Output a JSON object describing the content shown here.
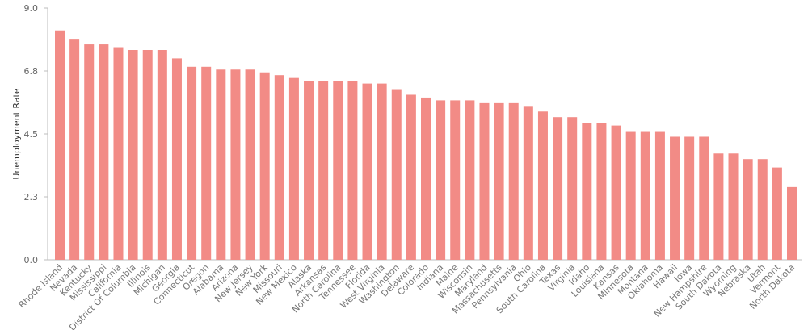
{
  "chart_data": {
    "type": "bar",
    "ylabel": "Unemployment Rate",
    "ylim": [
      0,
      9
    ],
    "yticks": [
      {
        "value": 0,
        "label": "0.0"
      },
      {
        "value": 2.25,
        "label": "2.3"
      },
      {
        "value": 4.5,
        "label": "4.5"
      },
      {
        "value": 6.75,
        "label": "6.8"
      },
      {
        "value": 9,
        "label": "9.0"
      }
    ],
    "grid": false,
    "bar_color": "#f28b86",
    "categories": [
      "Rhode Island",
      "Nevada",
      "Kentucky",
      "Mississippi",
      "California",
      "District Of Columbia",
      "Illinois",
      "Michigan",
      "Georgia",
      "Connecticut",
      "Oregon",
      "Alabama",
      "Arizona",
      "New Jersey",
      "New York",
      "Missouri",
      "New Mexico",
      "Alaska",
      "Arkansas",
      "North Carolina",
      "Tennessee",
      "Florida",
      "West Virginia",
      "Washington",
      "Delaware",
      "Colorado",
      "Indiana",
      "Maine",
      "Wisconsin",
      "Maryland",
      "Massachusetts",
      "Pennsylvania",
      "Ohio",
      "South Carolina",
      "Texas",
      "Virginia",
      "Idaho",
      "Louisiana",
      "Kansas",
      "Minnesota",
      "Montana",
      "Oklahoma",
      "Hawaii",
      "Iowa",
      "New Hampshire",
      "South Dakota",
      "Wyoming",
      "Nebraska",
      "Utah",
      "Vermont",
      "North Dakota"
    ],
    "values": [
      8.2,
      7.9,
      7.7,
      7.7,
      7.6,
      7.5,
      7.5,
      7.5,
      7.2,
      6.9,
      6.9,
      6.8,
      6.8,
      6.8,
      6.7,
      6.6,
      6.5,
      6.4,
      6.4,
      6.4,
      6.4,
      6.3,
      6.3,
      6.1,
      5.9,
      5.8,
      5.7,
      5.7,
      5.7,
      5.6,
      5.6,
      5.6,
      5.5,
      5.3,
      5.1,
      5.1,
      4.9,
      4.9,
      4.8,
      4.6,
      4.6,
      4.6,
      4.4,
      4.4,
      4.4,
      3.8,
      3.8,
      3.6,
      3.6,
      3.3,
      2.6
    ]
  }
}
